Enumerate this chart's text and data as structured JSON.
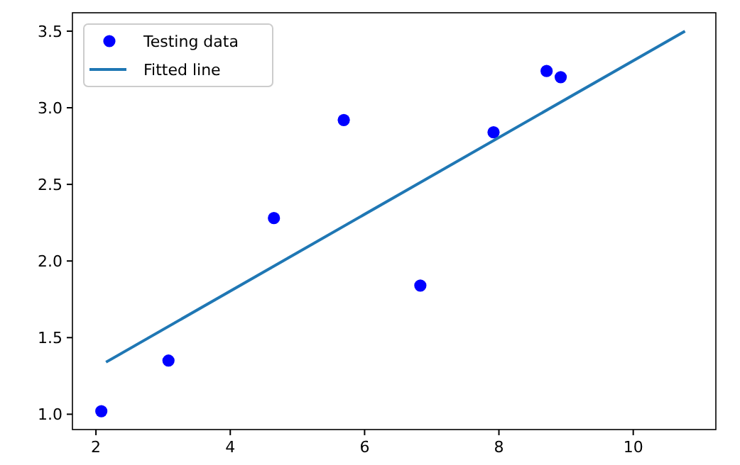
{
  "chart_data": {
    "type": "scatter",
    "xlim": [
      1.65,
      11.23
    ],
    "xticks": [
      2,
      4,
      6,
      8,
      10
    ],
    "ylim": [
      0.9,
      3.62
    ],
    "yticks": [
      {
        "value": 1,
        "label": "1.0"
      },
      {
        "value": 1.5,
        "label": "1.5"
      },
      {
        "value": 2,
        "label": "2.0"
      },
      {
        "value": 2.5,
        "label": "2.5"
      },
      {
        "value": 3,
        "label": "3.0"
      },
      {
        "value": 3.5,
        "label": "3.5"
      }
    ],
    "legend": "top left",
    "grid": false,
    "series": [
      {
        "name": "Testing data",
        "marker": "circle",
        "color": "#0000ff",
        "x": [
          2.08,
          3.08,
          4.65,
          5.69,
          6.83,
          7.92,
          8.71,
          8.92
        ],
        "values": [
          1.02,
          1.35,
          2.28,
          2.92,
          1.84,
          2.84,
          3.24,
          3.2
        ]
      },
      {
        "name": "Fitted line",
        "type": "line",
        "marker": "none",
        "line_style": "solid",
        "color": "#1f77b4",
        "x": [
          2.15,
          10.77
        ],
        "values": [
          1.34,
          3.5
        ]
      }
    ]
  }
}
